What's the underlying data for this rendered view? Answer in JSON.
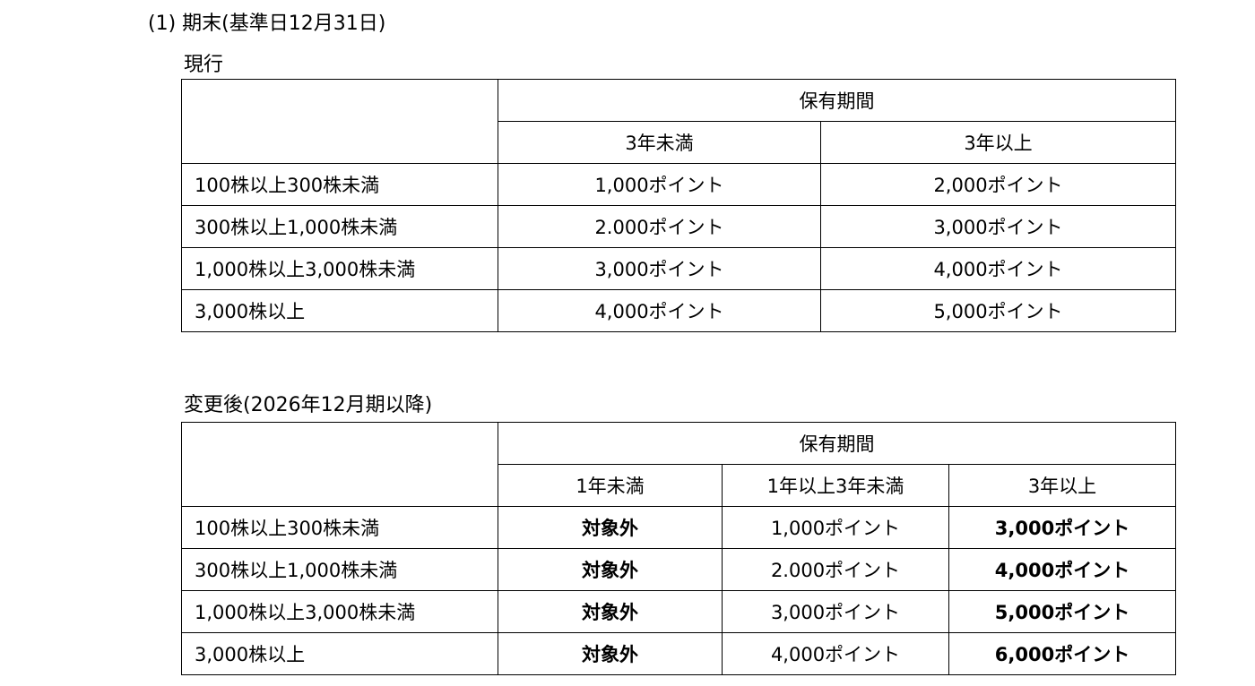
{
  "section_title": "(1) 期末(基準日12月31日)",
  "current": {
    "label": "現行",
    "group_header": "保有期間",
    "columns": [
      "3年未満",
      "3年以上"
    ],
    "rows": [
      {
        "shares": "100株以上300株未満",
        "values": [
          "1,000ポイント",
          "2,000ポイント"
        ]
      },
      {
        "shares": "300株以上1,000株未満",
        "values": [
          "2.000ポイント",
          "3,000ポイント"
        ]
      },
      {
        "shares": "1,000株以上3,000株未満",
        "values": [
          "3,000ポイント",
          "4,000ポイント"
        ]
      },
      {
        "shares": "3,000株以上",
        "values": [
          "4,000ポイント",
          "5,000ポイント"
        ]
      }
    ]
  },
  "revised": {
    "label": "変更後(2026年12月期以降)",
    "group_header": "保有期間",
    "columns": [
      "1年未満",
      "1年以上3年未満",
      "3年以上"
    ],
    "rows": [
      {
        "shares": "100株以上300株未満",
        "values": [
          "対象外",
          "1,000ポイント",
          "3,000ポイント"
        ]
      },
      {
        "shares": "300株以上1,000株未満",
        "values": [
          "対象外",
          "2.000ポイント",
          "4,000ポイント"
        ]
      },
      {
        "shares": "1,000株以上3,000株未満",
        "values": [
          "対象外",
          "3,000ポイント",
          "5,000ポイント"
        ]
      },
      {
        "shares": "3,000株以上",
        "values": [
          "対象外",
          "4,000ポイント",
          "6,000ポイント"
        ]
      }
    ]
  }
}
